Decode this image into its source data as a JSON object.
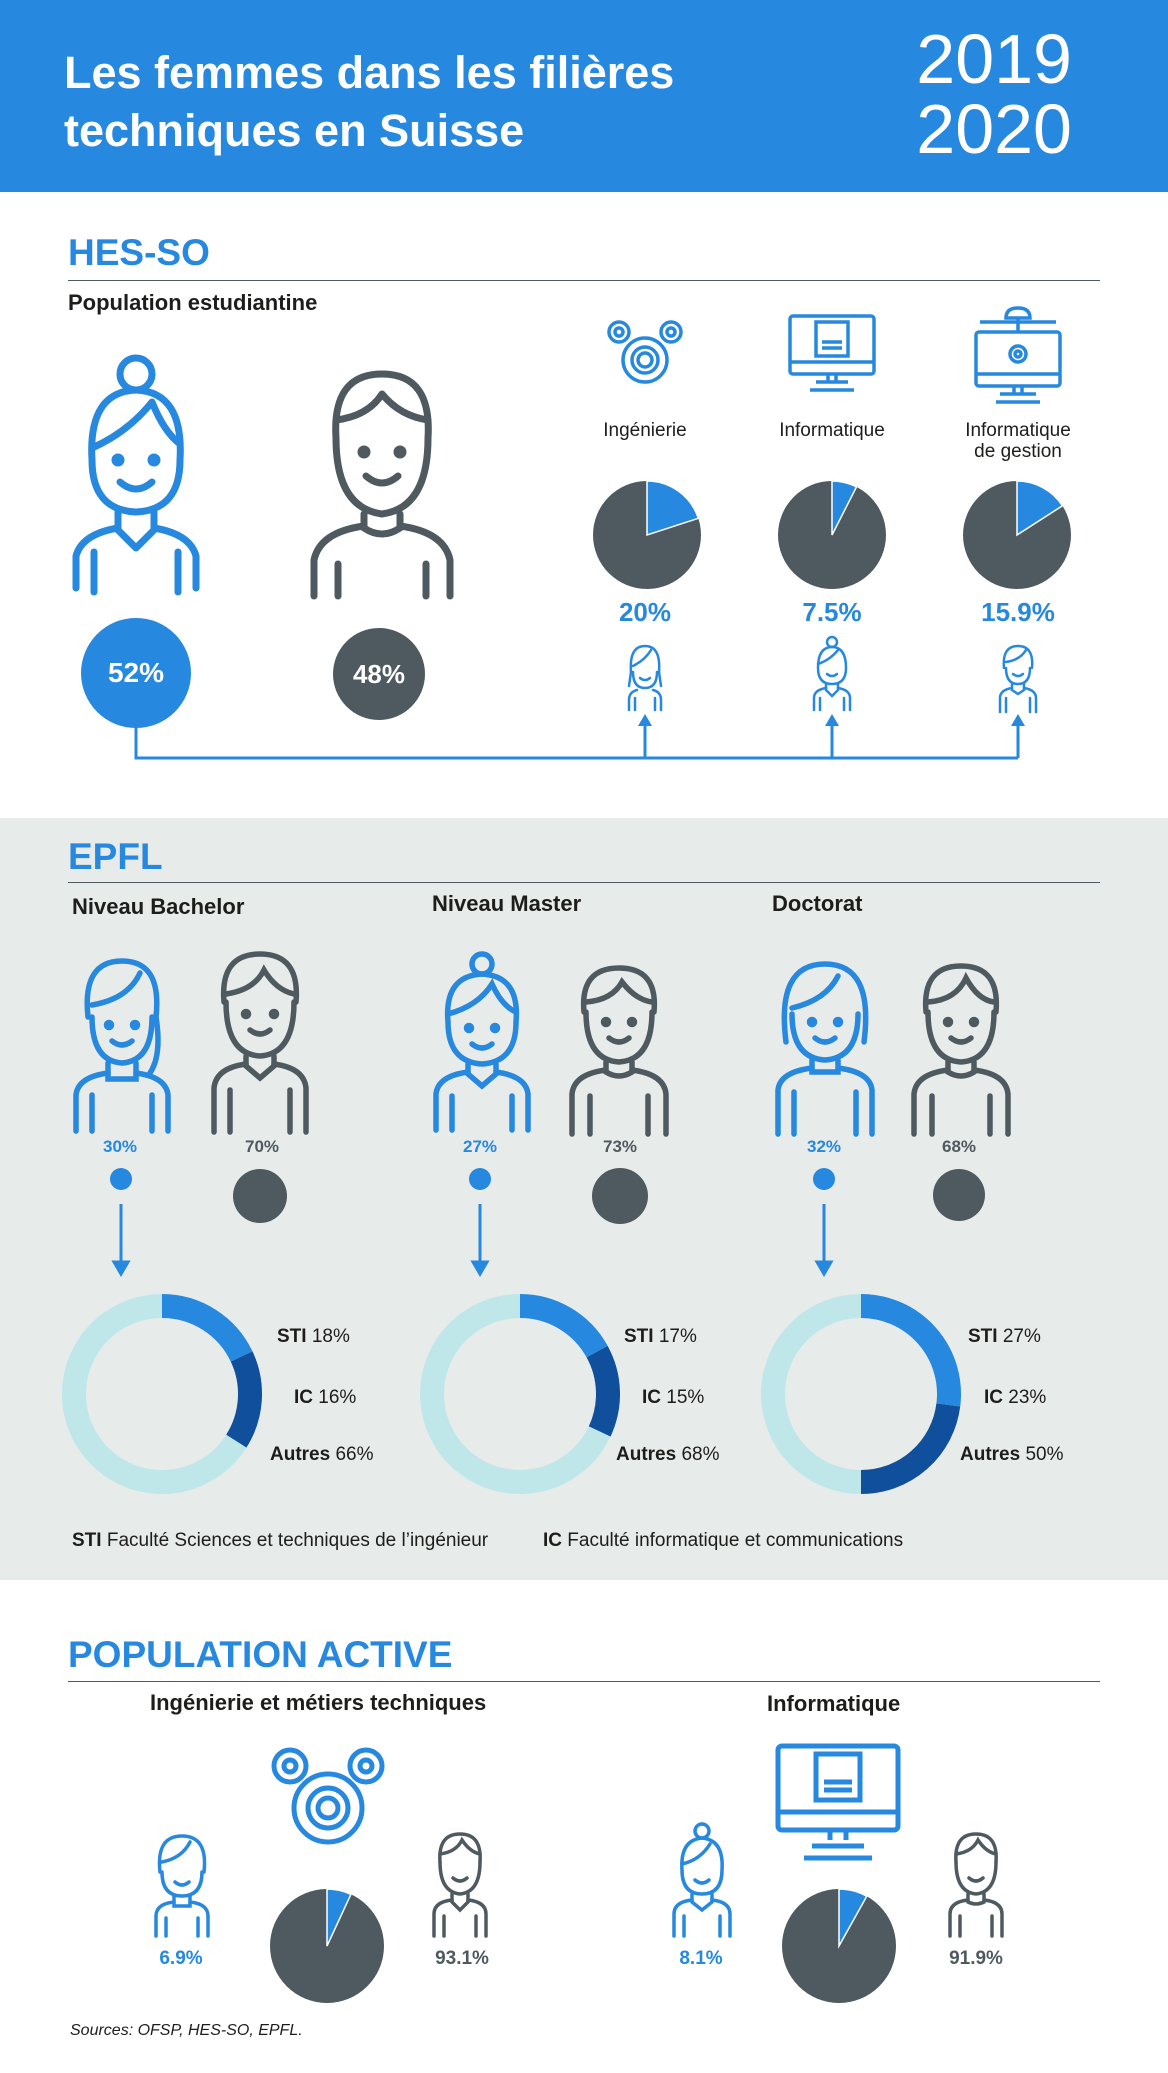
{
  "header": {
    "title_line1": "Les femmes dans les filières",
    "title_line2": "techniques en Suisse",
    "year_line1": "2019",
    "year_line2": "2020"
  },
  "colors": {
    "blue": "#2688de",
    "dark_blue": "#0f4f9c",
    "gray": "#4f5a60",
    "light_teal": "#bfe7ea",
    "epfl_bg": "#e7ebea"
  },
  "hesso": {
    "section_title": "HES-SO",
    "subtitle": "Population estudiantine",
    "women_pct": "52%",
    "men_pct": "48%",
    "fields": [
      {
        "label_line1": "Ingénierie",
        "label_line2": "",
        "pct": "20%",
        "icon": "gears-icon"
      },
      {
        "label_line1": "Informatique",
        "label_line2": "",
        "pct": "7.5%",
        "icon": "monitor-code-icon"
      },
      {
        "label_line1": "Informatique",
        "label_line2": "de gestion",
        "pct": "15.9%",
        "icon": "monitor-network-icon"
      }
    ]
  },
  "epfl": {
    "section_title": "EPFL",
    "levels": [
      {
        "title": "Niveau Bachelor",
        "women_pct": "30%",
        "men_pct": "70%",
        "donut": [
          {
            "name": "STI",
            "pct": "18%"
          },
          {
            "name": "IC",
            "pct": "16%"
          },
          {
            "name": "Autres",
            "pct": "66%"
          }
        ]
      },
      {
        "title": "Niveau Master",
        "women_pct": "27%",
        "men_pct": "73%",
        "donut": [
          {
            "name": "STI",
            "pct": "17%"
          },
          {
            "name": "IC",
            "pct": "15%"
          },
          {
            "name": "Autres",
            "pct": "68%"
          }
        ]
      },
      {
        "title": "Doctorat",
        "women_pct": "32%",
        "men_pct": "68%",
        "donut": [
          {
            "name": "STI",
            "pct": "27%"
          },
          {
            "name": "IC",
            "pct": "23%"
          },
          {
            "name": "Autres",
            "pct": "50%"
          }
        ]
      }
    ],
    "legend": {
      "sti_abbr": "STI",
      "sti_text": "Faculté Sciences et techniques de l’ingénieur",
      "ic_abbr": "IC",
      "ic_text": "Faculté informatique et communications"
    }
  },
  "active": {
    "section_title": "POPULATION ACTIVE",
    "groups": [
      {
        "title": "Ingénierie et métiers techniques",
        "women_pct": "6.9%",
        "men_pct": "93.1%",
        "icon": "gears-icon"
      },
      {
        "title": "Informatique",
        "women_pct": "8.1%",
        "men_pct": "91.9%",
        "icon": "monitor-code-icon"
      }
    ]
  },
  "sources": "Sources: OFSP, HES-SO, EPFL.",
  "chart_data": [
    {
      "type": "pie",
      "categories": [
        "Femmes",
        "Hommes"
      ],
      "values": [
        52,
        48
      ]
    },
    {
      "type": "pie",
      "categories": [
        "Ingénierie",
        "Informatique",
        "Informatique de gestion"
      ],
      "values": [
        20,
        7.5,
        15.9
      ]
    },
    {
      "type": "bar",
      "categories": [
        "Niveau Bachelor",
        "Niveau Master",
        "Doctorat"
      ],
      "series": [
        {
          "name": "",
          "values": [
            30,
            27,
            32
          ]
        },
        {
          "name": "",
          "values": [
            70,
            73,
            68
          ]
        }
      ]
    },
    {
      "type": "pie",
      "categories": [
        "STI",
        "IC",
        "Autres"
      ],
      "values": [
        18,
        16,
        66
      ]
    },
    {
      "type": "pie",
      "categories": [
        "STI",
        "IC",
        "Autres"
      ],
      "values": [
        17,
        15,
        68
      ]
    },
    {
      "type": "pie",
      "categories": [
        "STI",
        "IC",
        "Autres"
      ],
      "values": [
        27,
        23,
        50
      ]
    },
    {
      "type": "pie",
      "categories": [
        "Ingénierie et métiers techniques",
        "Informatique"
      ],
      "values": [
        6.9,
        8.1
      ]
    },
    {
      "type": "pie",
      "categories": [
        "Ingénierie et métiers techniques",
        "Informatique"
      ],
      "values": [
        93.1,
        91.9
      ]
    }
  ]
}
